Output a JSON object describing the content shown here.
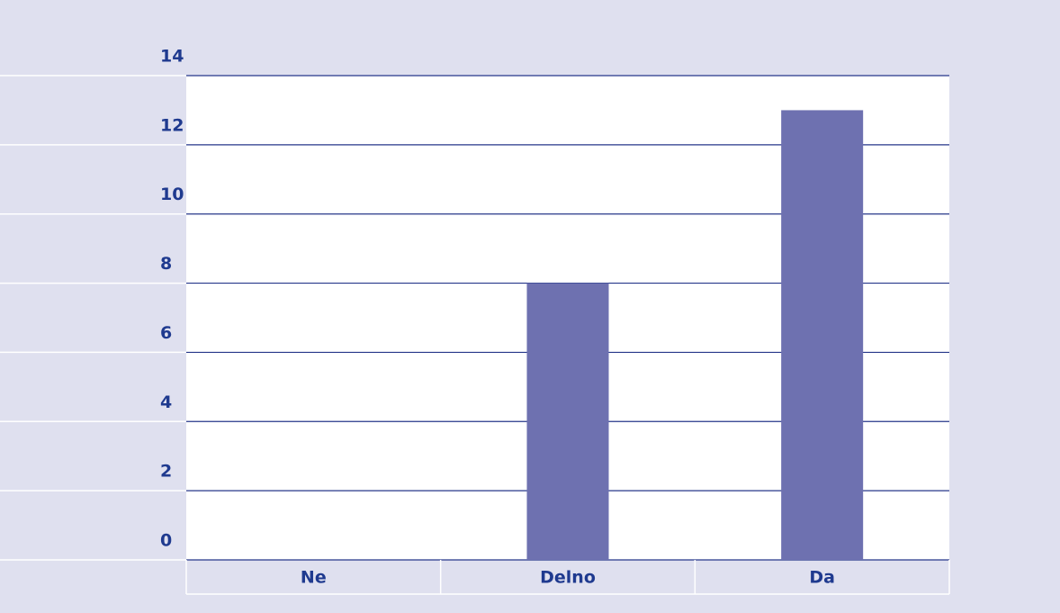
{
  "chart_data": {
    "type": "bar",
    "categories": [
      "Ne",
      "Delno",
      "Da"
    ],
    "values": [
      0,
      8,
      13
    ],
    "color": "#6e71b0",
    "ylim": [
      0,
      14
    ],
    "yticks": [
      0,
      2,
      4,
      6,
      8,
      10,
      12,
      14
    ],
    "grid": true
  }
}
